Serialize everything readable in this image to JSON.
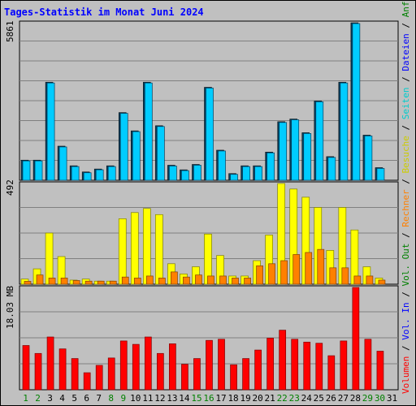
{
  "chart_data": {
    "type": "bar",
    "title": "Tages-Statistik im Monat Juni 2024",
    "x": [
      1,
      2,
      3,
      4,
      5,
      6,
      7,
      8,
      9,
      10,
      11,
      12,
      13,
      14,
      15,
      16,
      17,
      18,
      19,
      20,
      21,
      22,
      23,
      24,
      25,
      26,
      27,
      28,
      29,
      30,
      31
    ],
    "weekend_days": [
      1,
      2,
      8,
      9,
      15,
      16,
      22,
      23,
      29,
      30
    ],
    "colors": {
      "title": "#0000ff",
      "panel": "#c0c0c0",
      "grid": "#808080",
      "frame": "#000000",
      "weekday_label": "#000000",
      "weekend_label": "#008000",
      "anfragen": "#00ccff",
      "dateien": "#0080ff",
      "seiten": "#00ffff",
      "besuche": "#ffff00",
      "rechner": "#ff8000",
      "volumen": "#ff0000",
      "side_black": "#000000",
      "side_anfragen": "#008000",
      "side_dateien": "#0000ff",
      "side_seiten": "#00cccc",
      "side_besuche": "#cccc00",
      "side_rechner": "#ff8000",
      "side_volout": "#008000",
      "side_volin": "#0000ff",
      "side_volumen": "#ff0000"
    },
    "panels": [
      {
        "id": "top",
        "max_label": "5861",
        "ylim": [
          0,
          5861
        ],
        "series": [
          {
            "name": "Anfragen",
            "values": [
              750,
              750,
              3650,
              1270,
              540,
              310,
              420,
              540,
              2520,
              1840,
              3650,
              2030,
              560,
              390,
              590,
              3460,
              1120,
              250,
              540,
              540,
              1050,
              2180,
              2280,
              1770,
              2950,
              880,
              3650,
              5861,
              1680,
              470,
              0
            ]
          },
          {
            "name": "Dateien",
            "values": [
              720,
              720,
              3620,
              1240,
              510,
              280,
              390,
              510,
              2490,
              1810,
              3620,
              2000,
              530,
              360,
              560,
              3430,
              1090,
              220,
              510,
              510,
              1020,
              2150,
              2250,
              1740,
              2920,
              850,
              3620,
              5830,
              1650,
              440,
              0
            ]
          }
        ]
      },
      {
        "id": "middle",
        "max_label": "492",
        "ylim": [
          0,
          492
        ],
        "series": [
          {
            "name": "Besuche",
            "values": [
              25,
              75,
              250,
              135,
              20,
              25,
              15,
              15,
              320,
              350,
              370,
              340,
              100,
              50,
              85,
              245,
              140,
              40,
              40,
              115,
              240,
              492,
              465,
              425,
              375,
              165,
              375,
              265,
              85,
              30,
              0
            ]
          },
          {
            "name": "Rechner",
            "values": [
              14,
              45,
              30,
              30,
              18,
              15,
              15,
              15,
              35,
              30,
              40,
              30,
              60,
              35,
              45,
              40,
              40,
              30,
              30,
              90,
              100,
              115,
              145,
              155,
              170,
              80,
              80,
              40,
              40,
              20,
              0
            ]
          }
        ]
      },
      {
        "id": "bottom",
        "max_label": "18.03 MB",
        "ylim": [
          0,
          18.03
        ],
        "series": [
          {
            "name": "Volumen",
            "values": [
              7.8,
              6.4,
              9.3,
              7.2,
              5.5,
              3.0,
              4.3,
              5.6,
              8.6,
              8.0,
              9.3,
              6.4,
              8.1,
              4.5,
              5.5,
              8.7,
              8.9,
              4.4,
              5.5,
              7.0,
              9.1,
              10.5,
              8.9,
              8.4,
              8.2,
              6.0,
              8.6,
              18.03,
              8.9,
              6.8,
              0
            ]
          }
        ]
      }
    ],
    "side_labels": {
      "right": [
        "Anfragen",
        "/",
        "Dateien",
        "/",
        "Seiten",
        "/",
        "Besuche",
        "/",
        "Rechner",
        "/",
        "Vol. Out",
        "/",
        "Vol. In",
        "/",
        "Volumen"
      ]
    }
  }
}
